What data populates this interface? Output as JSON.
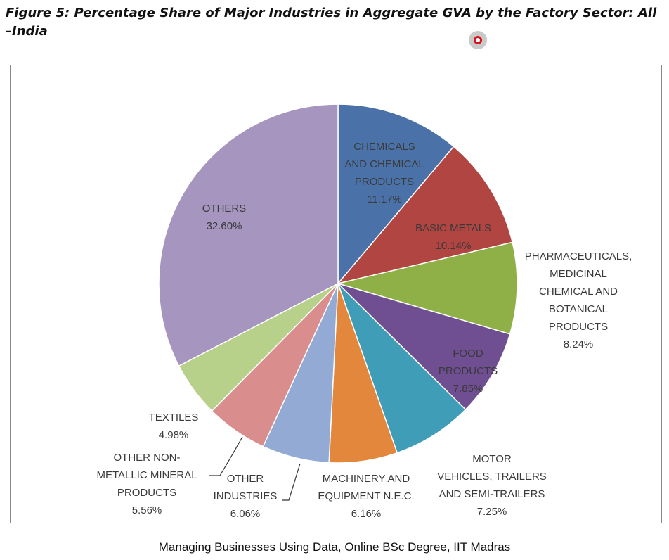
{
  "figure_title": "Figure 5: Percentage Share of Major Industries in Aggregate GVA by the Factory Sector: All –India",
  "footer_text": "Managing Businesses Using Data, Online BSc Degree, IIT Madras",
  "icons": {
    "record": "record-icon"
  },
  "chart_data": {
    "type": "pie",
    "title": "",
    "start": "12 o'clock, clockwise",
    "slices": [
      {
        "lines": [
          "CHEMICALS",
          "AND CHEMICAL",
          "PRODUCTS"
        ],
        "value": 11.17,
        "value_label": "11.17%",
        "color": "#4a72a8"
      },
      {
        "lines": [
          "BASIC METALS"
        ],
        "value": 10.14,
        "value_label": "10.14%",
        "color": "#b04542"
      },
      {
        "lines": [
          "PHARMACEUTICALS,",
          "MEDICINAL",
          "CHEMICAL AND",
          "BOTANICAL",
          "PRODUCTS"
        ],
        "value": 8.24,
        "value_label": "8.24%",
        "color": "#8fb046"
      },
      {
        "lines": [
          "FOOD",
          "PRODUCTS"
        ],
        "value": 7.85,
        "value_label": "7.85%",
        "color": "#6f4f92"
      },
      {
        "lines": [
          "MOTOR",
          "VEHICLES, TRAILERS",
          "AND SEMI-TRAILERS"
        ],
        "value": 7.25,
        "value_label": "7.25%",
        "color": "#3f9db7"
      },
      {
        "lines": [
          "MACHINERY AND",
          "EQUIPMENT N.E.C."
        ],
        "value": 6.16,
        "value_label": "6.16%",
        "color": "#e2873b"
      },
      {
        "lines": [
          "OTHER",
          "INDUSTRIES"
        ],
        "value": 6.06,
        "value_label": "6.06%",
        "color": "#93aad5"
      },
      {
        "lines": [
          "OTHER NON-",
          "METALLIC MINERAL",
          "PRODUCTS"
        ],
        "value": 5.56,
        "value_label": "5.56%",
        "color": "#d98e8d"
      },
      {
        "lines": [
          "TEXTILES"
        ],
        "value": 4.98,
        "value_label": "4.98%",
        "color": "#b7d18a"
      },
      {
        "lines": [
          "OTHERS"
        ],
        "value": 32.6,
        "value_label": "32.60%",
        "color": "#a595bf"
      }
    ]
  }
}
